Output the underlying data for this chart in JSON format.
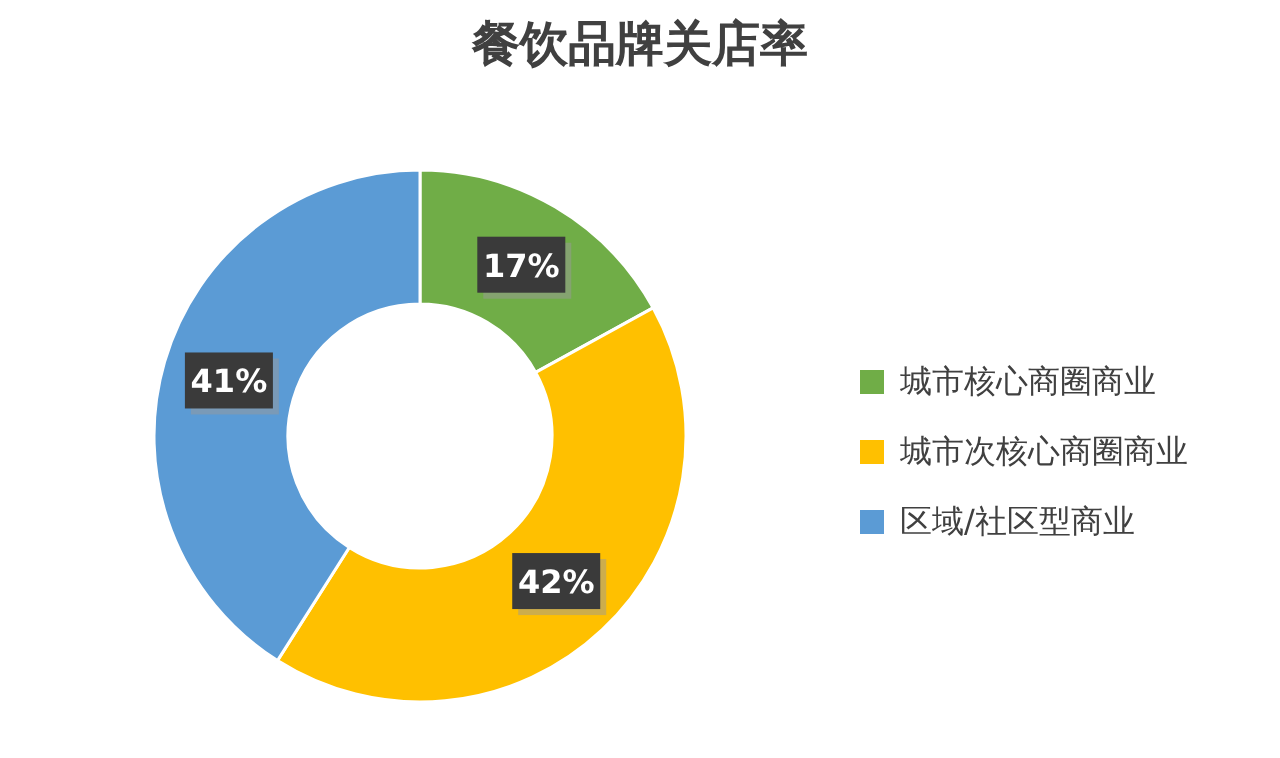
{
  "chart_data": {
    "type": "donut",
    "title": "餐饮品牌关店率",
    "categories": [
      "城市核心商圈商业",
      "城市次核心商圈商业",
      "区域/社区型商业"
    ],
    "values": [
      17,
      42,
      41
    ],
    "colors": [
      "#70ad47",
      "#ffc000",
      "#5b9bd5"
    ],
    "value_labels": [
      "17%",
      "42%",
      "41%"
    ],
    "legend": "right"
  }
}
